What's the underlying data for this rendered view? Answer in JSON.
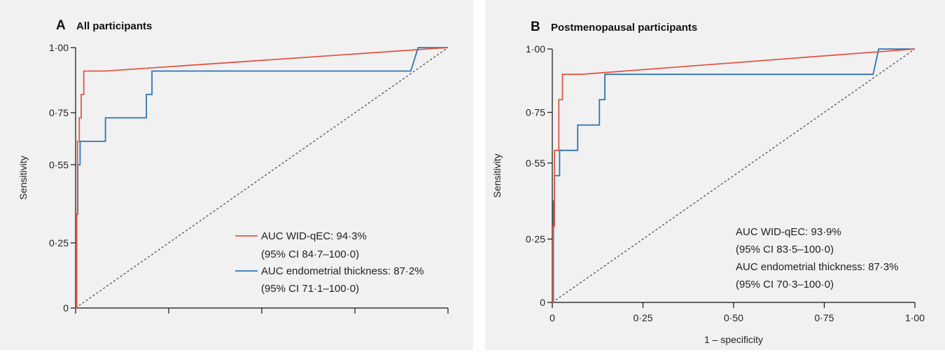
{
  "chart_data": [
    {
      "type": "line",
      "panel_letter": "A",
      "title": "All participants",
      "xlabel": "",
      "ylabel": "Sensitivity",
      "xlim": [
        0,
        1
      ],
      "ylim": [
        0,
        1
      ],
      "y_ticks": [
        0,
        0.25,
        0.55,
        0.75,
        1.0
      ],
      "y_tick_labels": [
        "0",
        "0·25",
        "0·55",
        "0·75",
        "1·00"
      ],
      "x_ticks": [
        0,
        0.25,
        0.5,
        0.75,
        1.0
      ],
      "x_tick_labels": [],
      "grid": false,
      "legend_placement": "bottom-right",
      "reference_line": {
        "x": [
          0,
          1
        ],
        "y": [
          0,
          1
        ],
        "style": "dashed"
      },
      "series": [
        {
          "name": "",
          "color": "#e05744",
          "legend_lines": [
            "AUC WID-qEC: 94·3%",
            "(95% CI 84·7–100·0)"
          ],
          "x": [
            0,
            0.002,
            0.002,
            0.005,
            0.005,
            0.01,
            0.01,
            0.015,
            0.015,
            0.022,
            0.022,
            0.03,
            0.08,
            1.0
          ],
          "y": [
            0,
            0,
            0.36,
            0.36,
            0.64,
            0.64,
            0.73,
            0.73,
            0.82,
            0.82,
            0.91,
            0.91,
            0.91,
            1.0
          ]
        },
        {
          "name": "",
          "color": "#2f73b4",
          "legend_lines": [
            "AUC endometrial thickness: 87·2%",
            "(95% CI 71·1–100·0)"
          ],
          "x": [
            0,
            0.003,
            0.003,
            0.006,
            0.006,
            0.012,
            0.012,
            0.02,
            0.02,
            0.08,
            0.08,
            0.19,
            0.19,
            0.205,
            0.205,
            0.9,
            0.92,
            0.92,
            1.0
          ],
          "y": [
            0,
            0,
            0.36,
            0.36,
            0.55,
            0.55,
            0.64,
            0.64,
            0.64,
            0.64,
            0.73,
            0.73,
            0.82,
            0.82,
            0.91,
            0.91,
            1.0,
            1.0,
            1.0
          ]
        }
      ]
    },
    {
      "type": "line",
      "panel_letter": "B",
      "title": "Postmenopausal participants",
      "xlabel": "1 – specificity",
      "ylabel": "Sensitivity",
      "xlim": [
        0,
        1
      ],
      "ylim": [
        0,
        1
      ],
      "y_ticks": [
        0,
        0.25,
        0.55,
        0.75,
        1.0
      ],
      "y_tick_labels": [
        "0",
        "0·25",
        "0·55",
        "0·75",
        "1·00"
      ],
      "x_ticks": [
        0,
        0.25,
        0.5,
        0.75,
        1.0
      ],
      "x_tick_labels": [
        "0",
        "0·25",
        "0·50",
        "0·75",
        "1·00"
      ],
      "grid": false,
      "legend_placement": "bottom-right",
      "reference_line": {
        "x": [
          0,
          1
        ],
        "y": [
          0,
          1
        ],
        "style": "dashed"
      },
      "series": [
        {
          "name": "",
          "color": "#e05744",
          "legend_lines": [
            "AUC WID-qEC: 93·9%",
            "(95% CI 83·5–100·0)"
          ],
          "x": [
            0,
            0.002,
            0.002,
            0.006,
            0.006,
            0.018,
            0.018,
            0.028,
            0.028,
            0.08,
            1.0
          ],
          "y": [
            0,
            0,
            0.3,
            0.3,
            0.6,
            0.6,
            0.8,
            0.8,
            0.9,
            0.9,
            1.0
          ]
        },
        {
          "name": "",
          "color": "#2f73b4",
          "legend_lines": [
            "AUC endometrial thickness: 87·3%",
            "(95% CI 70·3–100·0)"
          ],
          "x": [
            0,
            0.003,
            0.003,
            0.006,
            0.006,
            0.02,
            0.02,
            0.07,
            0.07,
            0.13,
            0.13,
            0.14,
            0.14,
            0.145,
            0.145,
            0.885,
            0.9,
            0.9,
            1.0
          ],
          "y": [
            0,
            0,
            0.4,
            0.4,
            0.5,
            0.5,
            0.6,
            0.6,
            0.7,
            0.7,
            0.8,
            0.8,
            0.8,
            0.8,
            0.9,
            0.9,
            1.0,
            1.0,
            1.0
          ]
        }
      ]
    }
  ]
}
